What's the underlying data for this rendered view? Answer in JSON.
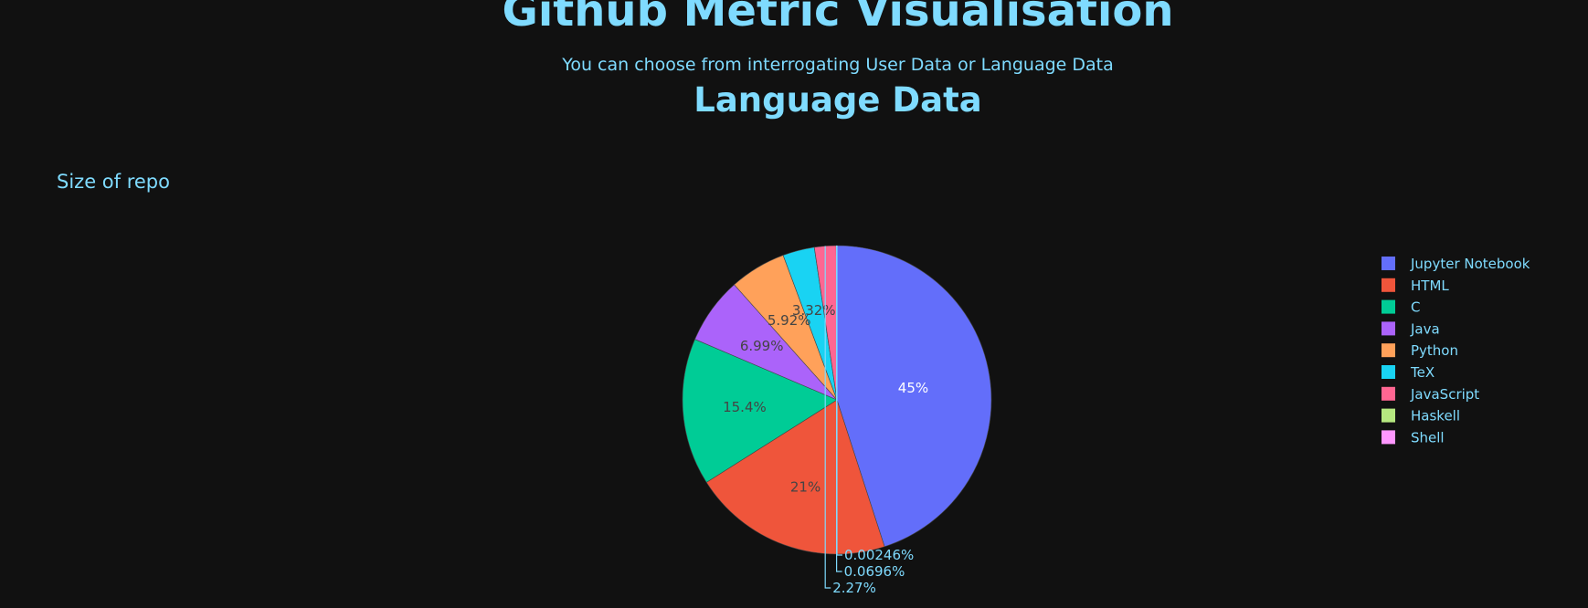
{
  "header": {
    "title": "Github Metric Visualisation",
    "subtitle": "You can choose from interrogating User Data or Language Data",
    "section_title": "Language Data"
  },
  "chart_data": {
    "type": "pie",
    "title": "Size of repo",
    "legend_position": "right",
    "slices": [
      {
        "label": "Jupyter Notebook",
        "percent": 45,
        "text": "45%",
        "color": "#636efa",
        "text_color": "#ffffff"
      },
      {
        "label": "HTML",
        "percent": 21,
        "text": "21%",
        "color": "#ef553b",
        "text_color": "#444444"
      },
      {
        "label": "C",
        "percent": 15.4,
        "text": "15.4%",
        "color": "#00cc96",
        "text_color": "#444444"
      },
      {
        "label": "Java",
        "percent": 6.99,
        "text": "6.99%",
        "color": "#ab63fa",
        "text_color": "#444444"
      },
      {
        "label": "Python",
        "percent": 5.92,
        "text": "5.92%",
        "color": "#ffa15a",
        "text_color": "#444444"
      },
      {
        "label": "TeX",
        "percent": 3.32,
        "text": "3.32%",
        "color": "#19d3f3",
        "text_color": "#444444"
      },
      {
        "label": "JavaScript",
        "percent": 2.27,
        "text": "2.27%",
        "color": "#ff6692",
        "text_color": "#7fdbff"
      },
      {
        "label": "Haskell",
        "percent": 0.0696,
        "text": "0.0696%",
        "color": "#b6e880",
        "text_color": "#7fdbff"
      },
      {
        "label": "Shell",
        "percent": 0.00246,
        "text": "0.00246%",
        "color": "#ff97ff",
        "text_color": "#7fdbff"
      }
    ]
  },
  "colors": {
    "background": "#111111",
    "text": "#7fdbff"
  }
}
